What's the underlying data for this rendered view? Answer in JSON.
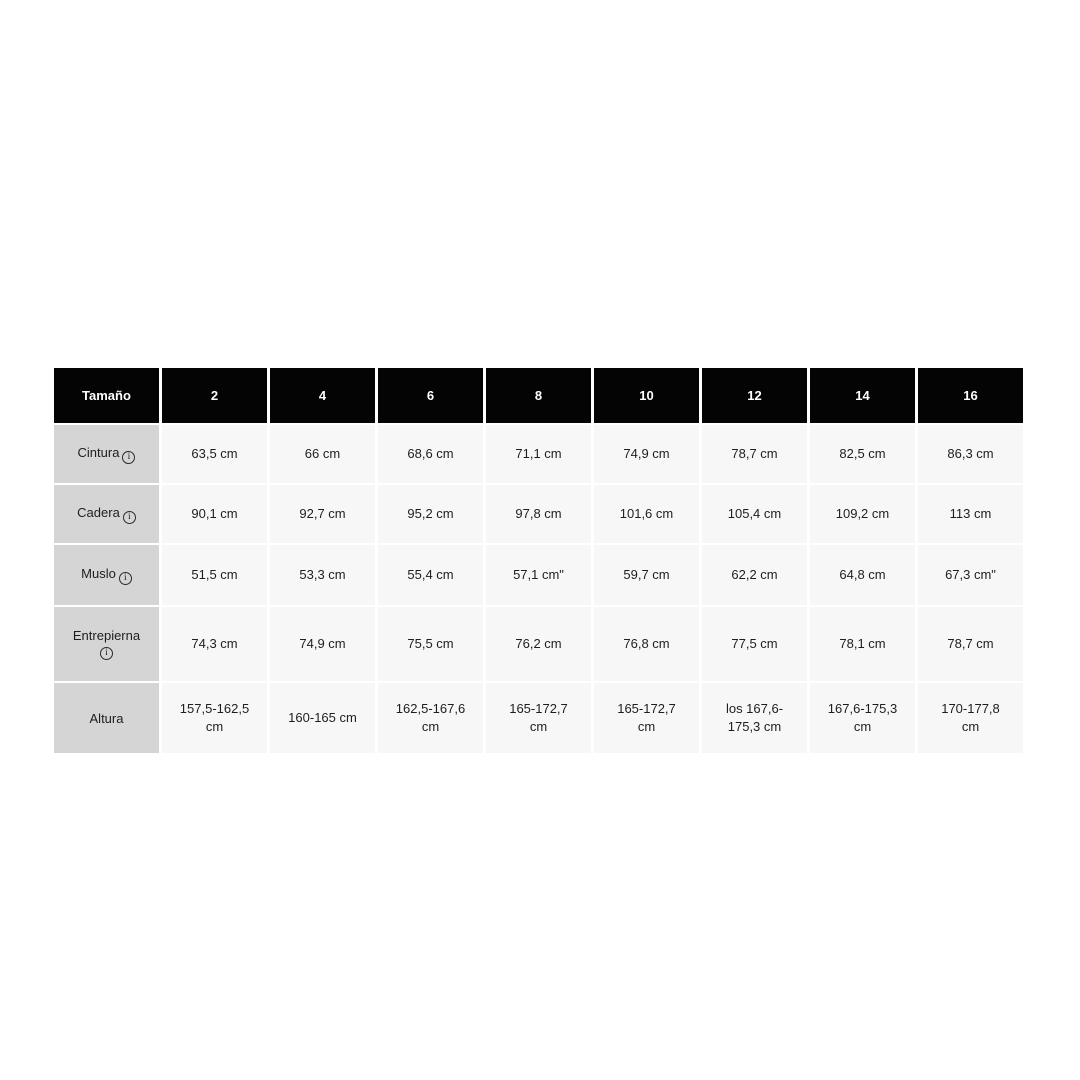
{
  "chart_data": {
    "type": "table",
    "columns": [
      "Tamaño",
      "2",
      "4",
      "6",
      "8",
      "10",
      "12",
      "14",
      "16"
    ],
    "rows": [
      {
        "label": "Cintura",
        "has_info_icon": true,
        "values": [
          "63,5 cm",
          "66 cm",
          "68,6 cm",
          "71,1 cm",
          "74,9 cm",
          "78,7 cm",
          "82,5 cm",
          "86,3 cm"
        ]
      },
      {
        "label": "Cadera",
        "has_info_icon": true,
        "values": [
          "90,1 cm",
          "92,7 cm",
          "95,2 cm",
          "97,8 cm",
          "101,6 cm",
          "105,4 cm",
          "109,2 cm",
          "113 cm"
        ]
      },
      {
        "label": "Muslo",
        "has_info_icon": true,
        "values": [
          "51,5 cm",
          "53,3 cm",
          "55,4 cm",
          "57,1 cm\"",
          "59,7 cm",
          "62,2 cm",
          "64,8 cm",
          "67,3 cm\""
        ]
      },
      {
        "label": "Entrepierna",
        "has_info_icon": true,
        "values": [
          "74,3 cm",
          "74,9 cm",
          "75,5 cm",
          "76,2 cm",
          "76,8 cm",
          "77,5 cm",
          "78,1 cm",
          "78,7 cm"
        ]
      },
      {
        "label": "Altura",
        "has_info_icon": false,
        "values": [
          "157,5-162,5 cm",
          "160-165 cm",
          "162,5-167,6 cm",
          "165-172,7 cm",
          "165-172,7 cm",
          "los 167,6-175,3 cm",
          "167,6-175,3 cm",
          "170-177,8 cm"
        ]
      }
    ]
  },
  "icons": {
    "info_glyph": "i"
  },
  "colors": {
    "header_bg": "#040404",
    "header_fg": "#ffffff",
    "label_bg": "#d5d5d5",
    "cell_bg": "#f7f7f7",
    "text": "#1e1e1e",
    "page_bg": "#ffffff"
  }
}
